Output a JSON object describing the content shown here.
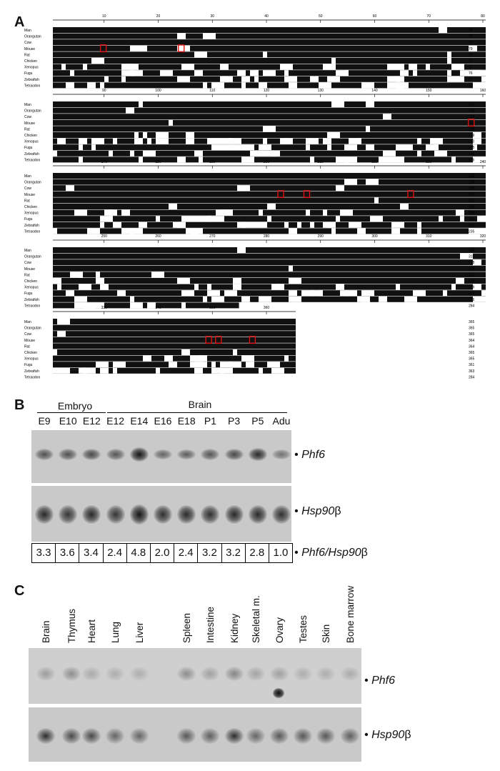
{
  "panel_a": {
    "letter": "A",
    "species": [
      "Man",
      "Orangutan",
      "Cow",
      "Mouse",
      "Rat",
      "Chicken",
      "Xenopus",
      "Fugu",
      "Zebrafish",
      "Tetraodon"
    ],
    "blocks": [
      {
        "ruler": [
          "10",
          "20",
          "30",
          "40",
          "50",
          "60",
          "70",
          "80"
        ],
        "end_numbers": [
          "79",
          "79",
          "79",
          "79",
          "79",
          "79",
          "80",
          "76",
          "77",
          "77"
        ]
      },
      {
        "ruler": [
          "90",
          "100",
          "110",
          "120",
          "130",
          "140",
          "150",
          "160"
        ],
        "end_numbers": [
          "159",
          "159",
          "159",
          "159",
          "159",
          "159",
          "160",
          "155",
          "156",
          "156"
        ]
      },
      {
        "ruler": [
          "170",
          "180",
          "190",
          "200",
          "210",
          "220",
          "230",
          "240"
        ],
        "end_numbers": [
          "238",
          "238",
          "238",
          "238",
          "238",
          "238",
          "239",
          "234",
          "236",
          "235"
        ]
      },
      {
        "ruler": [
          "250",
          "260",
          "270",
          "280",
          "290",
          "300",
          "310",
          "320"
        ],
        "end_numbers": [
          "318",
          "318",
          "318",
          "318",
          "318",
          "318",
          "319",
          "314",
          "316",
          "284"
        ]
      },
      {
        "ruler": [
          "330",
          "340",
          "350",
          "360"
        ],
        "end_numbers": [
          "365",
          "365",
          "365",
          "364",
          "364",
          "365",
          "365",
          "361",
          "363",
          "284"
        ]
      }
    ]
  },
  "panel_b": {
    "letter": "B",
    "group_embryo": "Embryo",
    "group_brain": "Brain",
    "lanes": [
      "E9",
      "E10",
      "E12",
      "E12",
      "E14",
      "E16",
      "E18",
      "P1",
      "P3",
      "P5",
      "Adu"
    ],
    "gene1": "Phf6",
    "gene2_prefix": "Hsp90",
    "gene2_suffix": "β",
    "ratio_label_prefix": "Phf6/Hsp90",
    "ratio_label_suffix": "β",
    "ratios": [
      "3.3",
      "3.6",
      "3.4",
      "2.4",
      "4.8",
      "2.0",
      "2.4",
      "3.2",
      "3.2",
      "2.8",
      "1.0"
    ],
    "bullet": "•"
  },
  "panel_c": {
    "letter": "C",
    "tissues": [
      "Brain",
      "Thymus",
      "Heart",
      "Lung",
      "Liver",
      "Spleen",
      "Intestine",
      "Kidney",
      "Skeletal m.",
      "Ovary",
      "Testes",
      "Skin",
      "Bone marrow"
    ],
    "gene1": "Phf6",
    "gene2_prefix": "Hsp90",
    "gene2_suffix": "β",
    "bullet": "•"
  }
}
